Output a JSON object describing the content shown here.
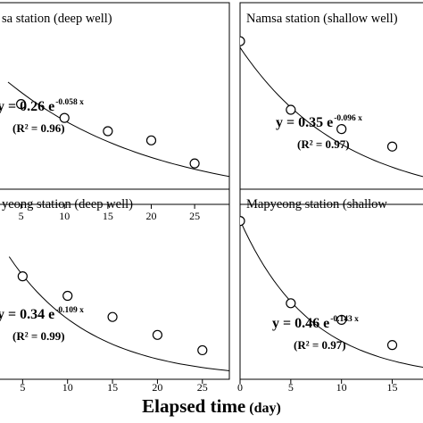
{
  "chart_data": [
    {
      "type": "scatter",
      "title": "sa station (deep well)",
      "x": [
        5,
        10,
        15,
        20,
        25
      ],
      "y": [
        0.174,
        0.15,
        0.127,
        0.111,
        0.071
      ],
      "fit": {
        "equation_prefix": "y = 0.26 e",
        "exponent": "-0.058 x",
        "r2": "(R² = 0.96)",
        "a": 0.26,
        "b": -0.058
      },
      "xlim": [
        0,
        29
      ],
      "ylim": [
        0,
        0.35
      ],
      "xticks": [
        5,
        10,
        15,
        20,
        25
      ],
      "xticklabels": [
        "5",
        "10",
        "15",
        "20",
        "25"
      ],
      "grid": false
    },
    {
      "type": "scatter",
      "title": "Namsa station (shallow well)",
      "x": [
        0,
        5,
        10,
        15
      ],
      "y": [
        0.364,
        0.211,
        0.168,
        0.129
      ],
      "fit": {
        "equation_prefix": "y = 0.35 e",
        "exponent": "-0.096 x",
        "r2": "(R² = 0.97)",
        "a": 0.35,
        "b": -0.096
      },
      "xlim": [
        0,
        19
      ],
      "ylim": [
        0,
        0.45
      ],
      "xticks": [],
      "xticklabels": [],
      "grid": false
    },
    {
      "type": "scatter",
      "title": "yeong station (deep well)",
      "x": [
        5,
        10,
        15,
        20,
        25
      ],
      "y": [
        0.195,
        0.158,
        0.118,
        0.084,
        0.055
      ],
      "fit": {
        "equation_prefix": "y = 0.34 e",
        "exponent": "-0.109 x",
        "r2": "(R² = 0.99)",
        "a": 0.34,
        "b": -0.109
      },
      "xlim": [
        0,
        28
      ],
      "ylim": [
        0,
        0.36
      ],
      "xticks": [
        5,
        10,
        15,
        20,
        25
      ],
      "xticklabels": [
        "5",
        "10",
        "15",
        "20",
        "25"
      ],
      "grid": false
    },
    {
      "type": "scatter",
      "title": "Mapyeong station (shallow",
      "x": [
        0,
        5,
        10,
        15
      ],
      "y": [
        0.458,
        0.22,
        0.172,
        0.099
      ],
      "fit": {
        "equation_prefix": "y = 0.46 e",
        "exponent": "-0.143 x",
        "r2": "(R² = 0.97)",
        "a": 0.46,
        "b": -0.143
      },
      "xlim": [
        0,
        19
      ],
      "ylim": [
        0,
        0.55
      ],
      "xticks": [
        0,
        5,
        10,
        15
      ],
      "xticklabels": [
        "0",
        "5",
        "10",
        "15"
      ],
      "grid": false
    }
  ],
  "xlabel": {
    "main": "Elapsed time",
    "unit": "(day)"
  }
}
